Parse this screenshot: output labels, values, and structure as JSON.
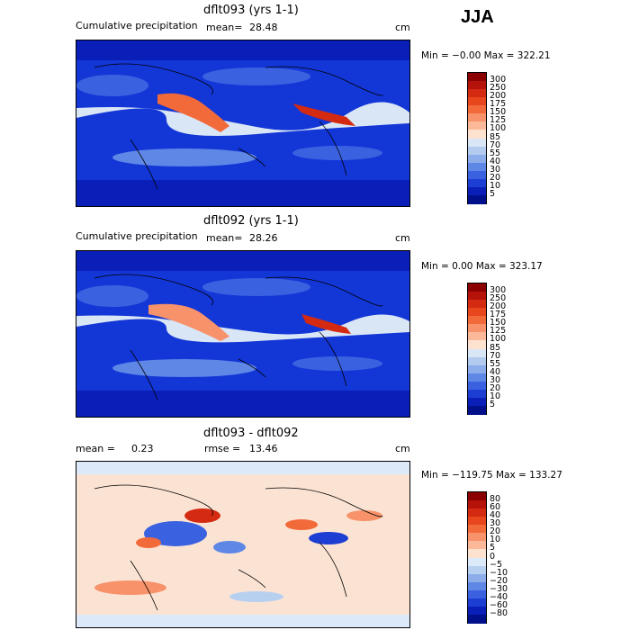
{
  "season": "JJA",
  "panels": [
    {
      "title": "dflt093 (yrs 1-1)",
      "left_label": "Cumulative precipitation",
      "mean_label": "mean=",
      "mean_value": "28.48",
      "units": "cm",
      "minmax": "Min =  −0.00 Max = 322.21",
      "colorbar_ticks": [
        "300",
        "250",
        "200",
        "175",
        "150",
        "125",
        "100",
        "85",
        "70",
        "55",
        "40",
        "30",
        "20",
        "10",
        "5"
      ],
      "colorbar_colors": [
        "#8b0000",
        "#b5120a",
        "#d42a12",
        "#e8461c",
        "#f26a3a",
        "#f7926a",
        "#fbb99a",
        "#fde2cf",
        "#d9e6f6",
        "#b3cbee",
        "#8cacea",
        "#5f87e6",
        "#3a62e0",
        "#1d3ed3",
        "#0a1fb8",
        "#00108a"
      ],
      "bg_color": "#1336d6"
    },
    {
      "title": "dflt092 (yrs 1-1)",
      "left_label": "Cumulative precipitation",
      "mean_label": "mean=",
      "mean_value": "28.26",
      "units": "cm",
      "minmax": "Min =   0.00 Max = 323.17",
      "colorbar_ticks": [
        "300",
        "250",
        "200",
        "175",
        "150",
        "125",
        "100",
        "85",
        "70",
        "55",
        "40",
        "30",
        "20",
        "10",
        "5"
      ],
      "colorbar_colors": [
        "#8b0000",
        "#b5120a",
        "#d42a12",
        "#e8461c",
        "#f26a3a",
        "#f7926a",
        "#fbb99a",
        "#fde2cf",
        "#d9e6f6",
        "#b3cbee",
        "#8cacea",
        "#5f87e6",
        "#3a62e0",
        "#1d3ed3",
        "#0a1fb8",
        "#00108a"
      ],
      "bg_color": "#1336d6"
    },
    {
      "title": "dflt093 - dflt092",
      "left_label": "mean =",
      "mean_value": "0.23",
      "rmse_label": "rmse =",
      "rmse_value": "13.46",
      "units": "cm",
      "minmax": "Min = −119.75 Max = 133.27",
      "colorbar_ticks": [
        "80",
        "60",
        "40",
        "30",
        "20",
        "10",
        "5",
        "0",
        "−5",
        "−10",
        "−20",
        "−30",
        "−40",
        "−60",
        "−80"
      ],
      "colorbar_colors": [
        "#8b0000",
        "#b5120a",
        "#d42a12",
        "#e8461c",
        "#f26a3a",
        "#f7926a",
        "#fbb99a",
        "#fde2cf",
        "#dce9f8",
        "#b8d0f0",
        "#8cacea",
        "#5f87e6",
        "#3a62e0",
        "#1d3ed3",
        "#0a1fb8",
        "#00108a"
      ],
      "bg_color": "#fbe3d4"
    }
  ]
}
